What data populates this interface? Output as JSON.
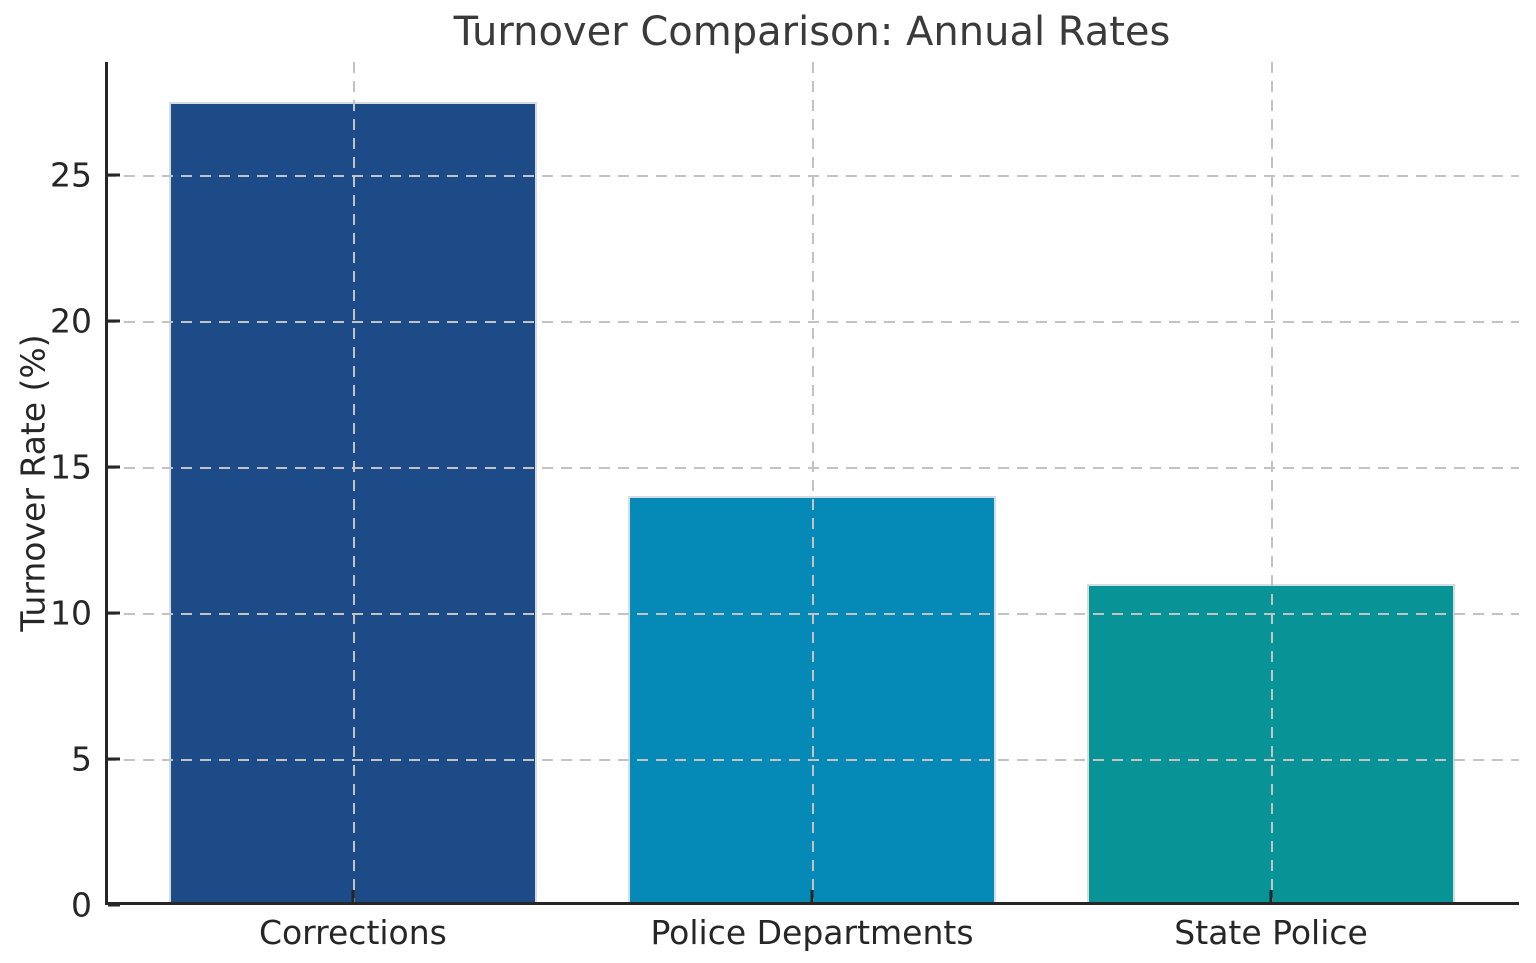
{
  "figure": {
    "title": "Turnover Comparison: Annual Rates",
    "ylabel": "Turnover Rate (%)"
  },
  "chart_data": {
    "type": "bar",
    "title": "Turnover Comparison: Annual Rates",
    "xlabel": "",
    "ylabel": "Turnover Rate (%)",
    "categories": [
      "Corrections",
      "Police Departments",
      "State Police"
    ],
    "values": [
      27.5,
      14.0,
      11.0
    ],
    "bar_colors": [
      "#1d4b87",
      "#058ab8",
      "#089396"
    ],
    "bar_edge_color": "#d5dce2",
    "ylim": [
      0,
      28.875
    ],
    "yticks": [
      0,
      5,
      10,
      15,
      20,
      25
    ],
    "xlim": [
      -0.54,
      2.54
    ],
    "bar_width": 0.8,
    "grid": true,
    "grid_line_style": "dashed",
    "grid_on_top_of_bars": true,
    "grid_color": "#c3c3c3",
    "axis_color": "#262626",
    "tick_direction": "in",
    "legend_position": "none",
    "background_color": "#ffffff",
    "title_color": "#3a3a3a",
    "tick_label_color": "#262626"
  }
}
